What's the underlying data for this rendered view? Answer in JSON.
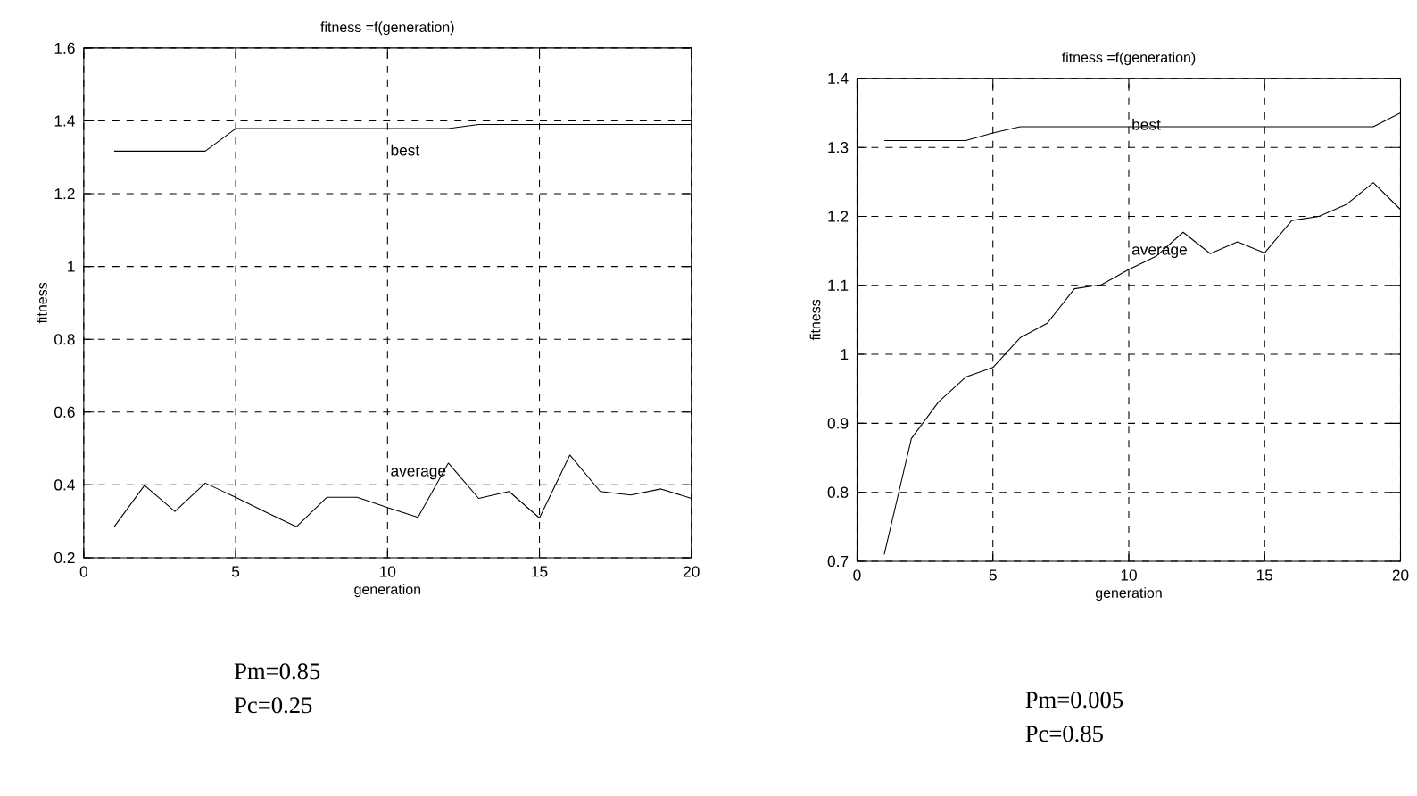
{
  "chart_data": [
    {
      "type": "line",
      "title": "fitness =f(generation)",
      "xlabel": "generation",
      "ylabel": "fitness",
      "x": [
        1,
        2,
        3,
        4,
        5,
        6,
        7,
        8,
        9,
        10,
        11,
        12,
        13,
        14,
        15,
        16,
        17,
        18,
        19,
        20
      ],
      "series": [
        {
          "color": "#000000",
          "values": [
            1.317,
            1.317,
            1.317,
            1.317,
            1.379,
            1.379,
            1.379,
            1.379,
            1.379,
            1.379,
            1.379,
            1.379,
            1.39,
            1.39,
            1.39,
            1.39,
            1.39,
            1.39,
            1.39,
            1.39
          ]
        },
        {
          "color": "#000000",
          "values": [
            0.285,
            0.399,
            0.327,
            0.405,
            0.366,
            0.325,
            0.285,
            0.366,
            0.366,
            0.338,
            0.311,
            0.46,
            0.363,
            0.382,
            0.309,
            0.482,
            0.382,
            0.372,
            0.389,
            0.363
          ]
        }
      ],
      "xlim": [
        0,
        20
      ],
      "ylim": [
        0.2,
        1.6
      ],
      "xticks": [
        0,
        5,
        10,
        15,
        20
      ],
      "yticks": [
        0.2,
        0.4,
        0.6,
        0.8,
        1,
        1.2,
        1.4,
        1.6
      ],
      "grid": true,
      "marker": "none",
      "line_style": "solid",
      "annotations": [
        "best",
        "average",
        "Pm=0.85",
        "Pc=0.25"
      ]
    },
    {
      "type": "line",
      "title": "fitness =f(generation)",
      "xlabel": "generation",
      "ylabel": "fitness",
      "x": [
        1,
        2,
        3,
        4,
        5,
        6,
        7,
        8,
        9,
        10,
        11,
        12,
        13,
        14,
        15,
        16,
        17,
        18,
        19,
        20
      ],
      "series": [
        {
          "color": "#000000",
          "values": [
            1.31,
            1.31,
            1.31,
            1.31,
            1.321,
            1.33,
            1.33,
            1.33,
            1.33,
            1.33,
            1.33,
            1.33,
            1.33,
            1.33,
            1.33,
            1.33,
            1.33,
            1.33,
            1.33,
            1.35
          ]
        },
        {
          "color": "#000000",
          "values": [
            0.71,
            0.878,
            0.931,
            0.967,
            0.981,
            1.024,
            1.045,
            1.095,
            1.101,
            1.123,
            1.142,
            1.177,
            1.146,
            1.163,
            1.147,
            1.194,
            1.2,
            1.217,
            1.249,
            1.21
          ]
        }
      ],
      "xlim": [
        0,
        20
      ],
      "ylim": [
        0.7,
        1.4
      ],
      "xticks": [
        0,
        5,
        10,
        15,
        20
      ],
      "yticks": [
        0.7,
        0.8,
        0.9,
        1,
        1.1,
        1.2,
        1.3,
        1.4
      ],
      "grid": true,
      "marker": "none",
      "line_style": "solid",
      "annotations": [
        "best",
        "average",
        "Pm=0.005",
        "Pc=0.85"
      ]
    }
  ]
}
